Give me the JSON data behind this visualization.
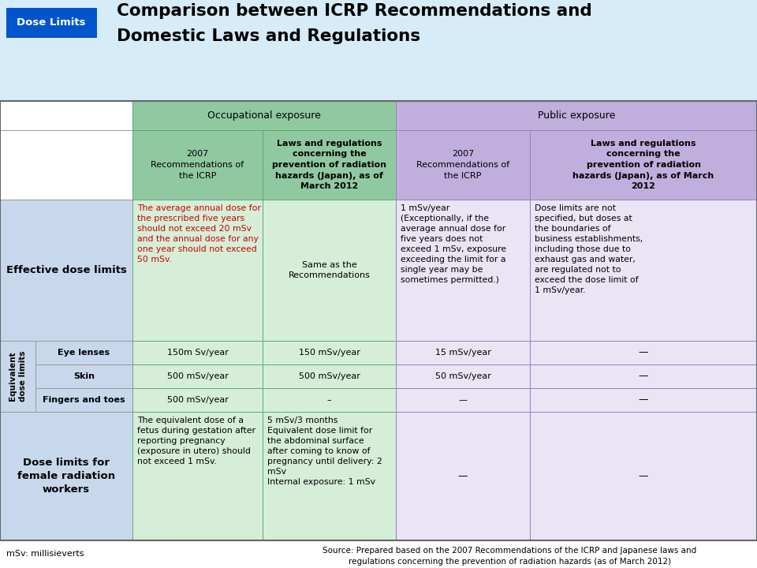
{
  "title_line1": "Comparison between ICRP Recommendations and",
  "title_line2": "Domestic Laws and Regulations",
  "dose_limits_label": "Dose Limits",
  "dose_limits_bg": "#0055CC",
  "dose_limits_fg": "#FFFFFF",
  "top_bg": "#D6ECF8",
  "occ_header": "Occupational exposure",
  "pub_header": "Public exposure",
  "col1_header": "2007\nRecommendations of\nthe ICRP",
  "col2_header": "Laws and regulations\nconcerning the\nprevention of radiation\nhazards (Japan), as of\nMarch 2012",
  "col3_header": "2007\nRecommendations of\nthe ICRP",
  "col4_header": "Laws and regulations\nconcerning the\nprevention of radiation\nhazards (Japan), as of March\n2012",
  "bg_green_header": "#90C9A0",
  "bg_green_cell": "#D6EED8",
  "bg_purple_header": "#C0AEDD",
  "bg_purple_cell": "#EAE4F4",
  "bg_label": "#C8D8EC",
  "bg_white": "#FFFFFF",
  "border_color": "#888888",
  "row0_label": "Effective dose limits",
  "row0_c1_red": "The average annual dose for\nthe prescribed five years\nshould not exceed 20 mSv\nand the annual dose for any\none year should not exceed\n50 mSv.",
  "row0_c2": "Same as the\nRecommendations",
  "row0_c3": "1 mSv/year\n(Exceptionally, if the\naverage annual dose for\nfive years does not\nexceed 1 mSv, exposure\nexceeding the limit for a\nsingle year may be\nsometimes permitted.)",
  "row0_c4": "Dose limits are not\nspecified, but doses at\nthe boundaries of\nbusiness establishments,\nincluding those due to\nexhaust gas and water,\nare regulated not to\nexceed the dose limit of\n1 mSv/year.",
  "row1_grouplabel": "Equivalent\ndose limits",
  "row1a_label": "Eye lenses",
  "row1a_c1": "150m Sv/year",
  "row1a_c2": "150 mSv/year",
  "row1a_c3": "15 mSv/year",
  "row1a_c4": "—",
  "row1b_label": "Skin",
  "row1b_c1": "500 mSv/year",
  "row1b_c2": "500 mSv/year",
  "row1b_c3": "50 mSv/year",
  "row1b_c4": "—",
  "row1c_label": "Fingers and toes",
  "row1c_c1": "500 mSv/year",
  "row1c_c2": "–",
  "row1c_c3": "—",
  "row1c_c4": "—",
  "row2_label": "Dose limits for\nfemale radiation\nworkers",
  "row2_c1": "The equivalent dose of a\nfetus during gestation after\nreporting pregnancy\n(exposure in utero) should\nnot exceed 1 mSv.",
  "row2_c2": "5 mSv/3 months\nEquivalent dose limit for\nthe abdominal surface\nafter coming to know of\npregnancy until delivery: 2\nmSv\nInternal exposure: 1 mSv",
  "row2_c3": "—",
  "row2_c4": "—",
  "footnote": "mSv: millisieverts",
  "source_line1": "Source: Prepared based on the 2007 Recommendations of the ICRP and Japanese laws and",
  "source_line2": "regulations concerning the prevention of radiation hazards (as of March 2012)"
}
